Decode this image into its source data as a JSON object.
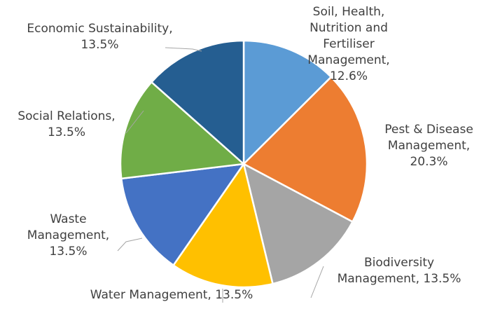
{
  "chart_data": {
    "type": "pie",
    "categories": [
      "Soil, Health, Nutrition and Fertiliser Management",
      "Pest & Disease Management",
      "Biodiversity Management",
      "Water Management",
      "Waste Management",
      "Social Relations",
      "Economic Sustainability"
    ],
    "values": [
      12.6,
      20.3,
      13.5,
      13.5,
      13.5,
      13.5,
      13.5
    ],
    "value_labels": [
      "12.6%",
      "20.3%",
      "13.5%",
      "13.5%",
      "13.5%",
      "13.5%",
      "13.5%"
    ],
    "colors": [
      "#5b9bd5",
      "#ed7d31",
      "#a5a5a5",
      "#ffc000",
      "#4472c4",
      "#70ad47",
      "#255e91"
    ]
  }
}
